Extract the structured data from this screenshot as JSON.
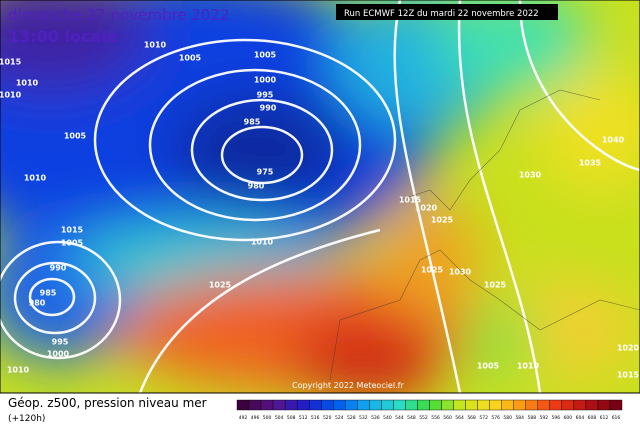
{
  "header": {
    "date": "dimanche 27 novembre 2022",
    "time": "13:00 locale",
    "run": "Run ECMWF 12Z du mardi 22 novembre 2022"
  },
  "map": {
    "isobar_labels": [
      "1010",
      "1005",
      "1005",
      "1000",
      "995",
      "990",
      "985",
      "975",
      "980",
      "1015",
      "1010",
      "1010",
      "1005",
      "1010",
      "1015",
      "1010",
      "1005",
      "990",
      "985",
      "980",
      "995",
      "1000",
      "1010",
      "1025",
      "1015",
      "1020",
      "1025",
      "1025",
      "1030",
      "1025",
      "1030",
      "1035",
      "1040",
      "1005",
      "1010",
      "1020",
      "1015"
    ],
    "copyright": "Copyright 2022 Meteociel.fr"
  },
  "footer": {
    "title": "Géop. z500, pression niveau mer",
    "lead": "(+120h)",
    "scale_labels": [
      "492",
      "496",
      "500",
      "504",
      "508",
      "512",
      "516",
      "520",
      "524",
      "528",
      "532",
      "536",
      "540",
      "544",
      "548",
      "552",
      "556",
      "560",
      "564",
      "568",
      "572",
      "576",
      "580",
      "584",
      "588",
      "592",
      "596",
      "600",
      "604",
      "608",
      "612",
      "616"
    ]
  }
}
